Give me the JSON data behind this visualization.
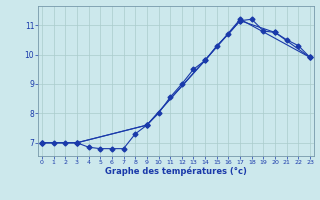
{
  "xlabel": "Graphe des températures (°c)",
  "bg_color": "#cce8ec",
  "grid_color": "#aacccc",
  "line_color": "#1a3aaa",
  "yticks": [
    7,
    8,
    9,
    10,
    11
  ],
  "xticks": [
    0,
    1,
    2,
    3,
    4,
    5,
    6,
    7,
    8,
    9,
    10,
    11,
    12,
    13,
    14,
    15,
    16,
    17,
    18,
    19,
    20,
    21,
    22,
    23
  ],
  "xlim": [
    -0.3,
    23.3
  ],
  "ylim": [
    6.55,
    11.65
  ],
  "line1_x": [
    0,
    1,
    2,
    3,
    4,
    5,
    6,
    7,
    8,
    9,
    10,
    11,
    12,
    13,
    14,
    15,
    16,
    17,
    18,
    19,
    20,
    21,
    22,
    23
  ],
  "line1_y": [
    7.0,
    7.0,
    7.0,
    7.0,
    6.85,
    6.8,
    6.8,
    6.8,
    7.3,
    7.6,
    8.0,
    8.55,
    9.0,
    9.5,
    9.8,
    10.3,
    10.7,
    11.15,
    11.2,
    10.8,
    10.75,
    10.5,
    10.3,
    9.9
  ],
  "line2_x": [
    0,
    3,
    9,
    14,
    17,
    23
  ],
  "line2_y": [
    7.0,
    7.0,
    7.6,
    9.8,
    11.2,
    9.9
  ],
  "line3_x": [
    0,
    3,
    9,
    17,
    20,
    23
  ],
  "line3_y": [
    7.0,
    7.0,
    7.6,
    11.15,
    10.75,
    9.9
  ]
}
